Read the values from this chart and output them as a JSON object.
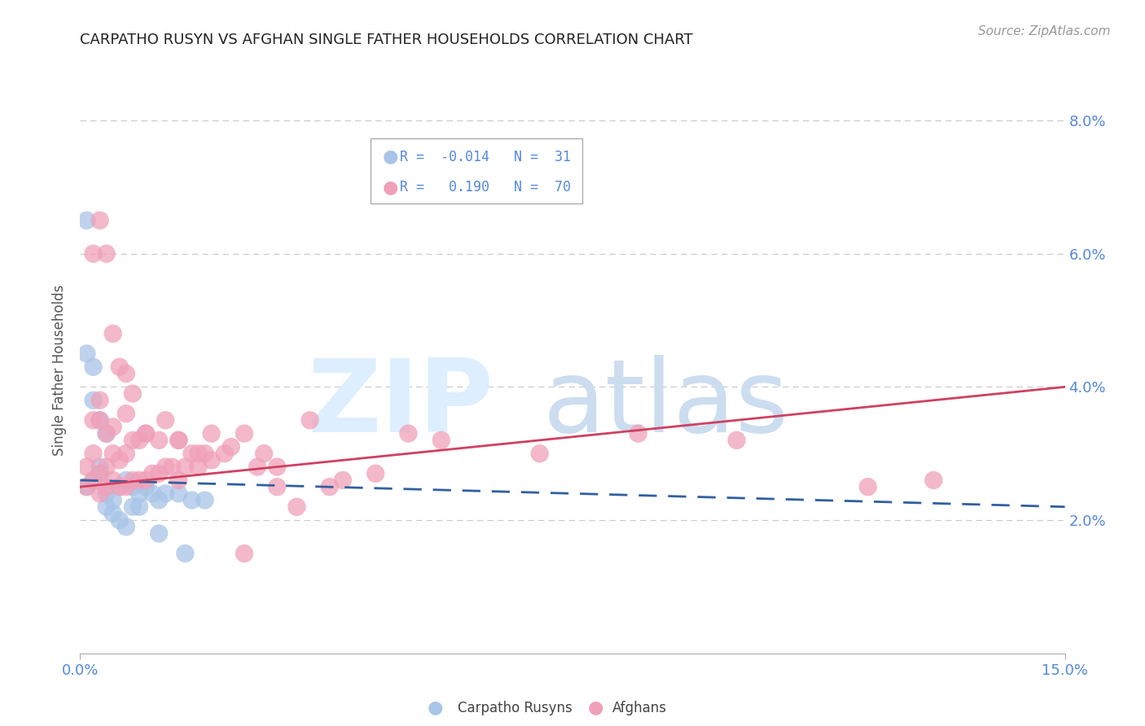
{
  "title": "CARPATHO RUSYN VS AFGHAN SINGLE FATHER HOUSEHOLDS CORRELATION CHART",
  "source": "Source: ZipAtlas.com",
  "ylabel": "Single Father Households",
  "legend_blue_r": "-0.014",
  "legend_blue_n": "31",
  "legend_pink_r": "0.190",
  "legend_pink_n": "70",
  "blue_color": "#a8c4e8",
  "pink_color": "#f0a0b8",
  "blue_line_color": "#3060a0",
  "pink_line_color": "#d04060",
  "axis_label_color": "#5588dd",
  "title_color": "#222222",
  "background_color": "#ffffff",
  "grid_color": "#cccccc",
  "blue_scatter_x": [
    0.001,
    0.002,
    0.003,
    0.004,
    0.005,
    0.006,
    0.007,
    0.008,
    0.009,
    0.01,
    0.011,
    0.012,
    0.013,
    0.015,
    0.017,
    0.019,
    0.001,
    0.001,
    0.002,
    0.002,
    0.003,
    0.003,
    0.004,
    0.004,
    0.005,
    0.006,
    0.007,
    0.008,
    0.009,
    0.012,
    0.016
  ],
  "blue_scatter_y": [
    0.025,
    0.026,
    0.027,
    0.024,
    0.023,
    0.025,
    0.026,
    0.025,
    0.024,
    0.025,
    0.024,
    0.023,
    0.024,
    0.024,
    0.023,
    0.023,
    0.045,
    0.065,
    0.043,
    0.038,
    0.035,
    0.028,
    0.033,
    0.022,
    0.021,
    0.02,
    0.019,
    0.022,
    0.022,
    0.018,
    0.015
  ],
  "pink_scatter_x": [
    0.001,
    0.001,
    0.002,
    0.002,
    0.002,
    0.003,
    0.003,
    0.003,
    0.003,
    0.004,
    0.004,
    0.004,
    0.005,
    0.005,
    0.005,
    0.006,
    0.006,
    0.007,
    0.007,
    0.007,
    0.008,
    0.008,
    0.009,
    0.009,
    0.01,
    0.01,
    0.011,
    0.012,
    0.013,
    0.013,
    0.014,
    0.015,
    0.015,
    0.016,
    0.017,
    0.018,
    0.019,
    0.02,
    0.022,
    0.023,
    0.025,
    0.027,
    0.028,
    0.03,
    0.033,
    0.035,
    0.038,
    0.04,
    0.045,
    0.05,
    0.002,
    0.003,
    0.004,
    0.005,
    0.006,
    0.007,
    0.008,
    0.01,
    0.012,
    0.015,
    0.018,
    0.02,
    0.025,
    0.03,
    0.055,
    0.07,
    0.085,
    0.1,
    0.12,
    0.13
  ],
  "pink_scatter_y": [
    0.025,
    0.028,
    0.026,
    0.03,
    0.035,
    0.024,
    0.027,
    0.035,
    0.038,
    0.025,
    0.028,
    0.033,
    0.026,
    0.03,
    0.034,
    0.025,
    0.029,
    0.025,
    0.03,
    0.036,
    0.026,
    0.032,
    0.026,
    0.032,
    0.026,
    0.033,
    0.027,
    0.027,
    0.028,
    0.035,
    0.028,
    0.026,
    0.032,
    0.028,
    0.03,
    0.028,
    0.03,
    0.033,
    0.03,
    0.031,
    0.033,
    0.028,
    0.03,
    0.028,
    0.022,
    0.035,
    0.025,
    0.026,
    0.027,
    0.033,
    0.06,
    0.065,
    0.06,
    0.048,
    0.043,
    0.042,
    0.039,
    0.033,
    0.032,
    0.032,
    0.03,
    0.029,
    0.015,
    0.025,
    0.032,
    0.03,
    0.033,
    0.032,
    0.025,
    0.026
  ],
  "xmin": 0.0,
  "xmax": 0.15,
  "ymin": 0.0,
  "ymax": 0.085,
  "yticks": [
    0.02,
    0.04,
    0.06,
    0.08
  ],
  "ytick_labels": [
    "2.0%",
    "4.0%",
    "6.0%",
    "8.0%"
  ],
  "xticks": [
    0.0,
    0.15
  ],
  "xtick_labels": [
    "0.0%",
    "15.0%"
  ],
  "blue_trend_x": [
    0.0,
    0.15
  ],
  "blue_trend_y": [
    0.026,
    0.022
  ],
  "pink_trend_x": [
    0.0,
    0.15
  ],
  "pink_trend_y": [
    0.025,
    0.04
  ]
}
